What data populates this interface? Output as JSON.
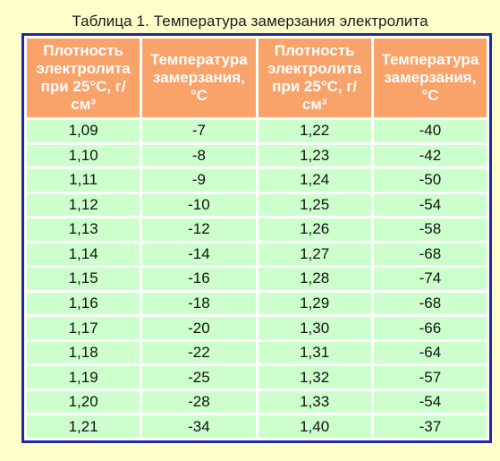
{
  "caption": "Таблица 1. Температура замерзания электролита",
  "table": {
    "headers": [
      "Плотность электролита при 25°С, г/см³",
      "Температура замерзания, °С",
      "Плотность электролита при 25°С, г/см³",
      "Температура замерзания, °С"
    ],
    "rows": [
      [
        "1,09",
        "-7",
        "1,22",
        "-40"
      ],
      [
        "1,10",
        "-8",
        "1,23",
        "-42"
      ],
      [
        "1,11",
        "-9",
        "1,24",
        "-50"
      ],
      [
        "1,12",
        "-10",
        "1,25",
        "-54"
      ],
      [
        "1,13",
        "-12",
        "1,26",
        "-58"
      ],
      [
        "1,14",
        "-14",
        "1,27",
        "-68"
      ],
      [
        "1,15",
        "-16",
        "1,28",
        "-74"
      ],
      [
        "1,16",
        "-18",
        "1,29",
        "-68"
      ],
      [
        "1,17",
        "-20",
        "1,30",
        "-66"
      ],
      [
        "1,18",
        "-22",
        "1,31",
        "-64"
      ],
      [
        "1,19",
        "-25",
        "1,32",
        "-57"
      ],
      [
        "1,20",
        "-28",
        "1,33",
        "-54"
      ],
      [
        "1,21",
        "-34",
        "1,40",
        "-37"
      ]
    ]
  },
  "colors": {
    "page_background": "#ffffcc",
    "header_background": "#f9a269",
    "header_text": "#ffffff",
    "cell_background": "#ccffcc",
    "frame_border": "#1d2aa8"
  }
}
